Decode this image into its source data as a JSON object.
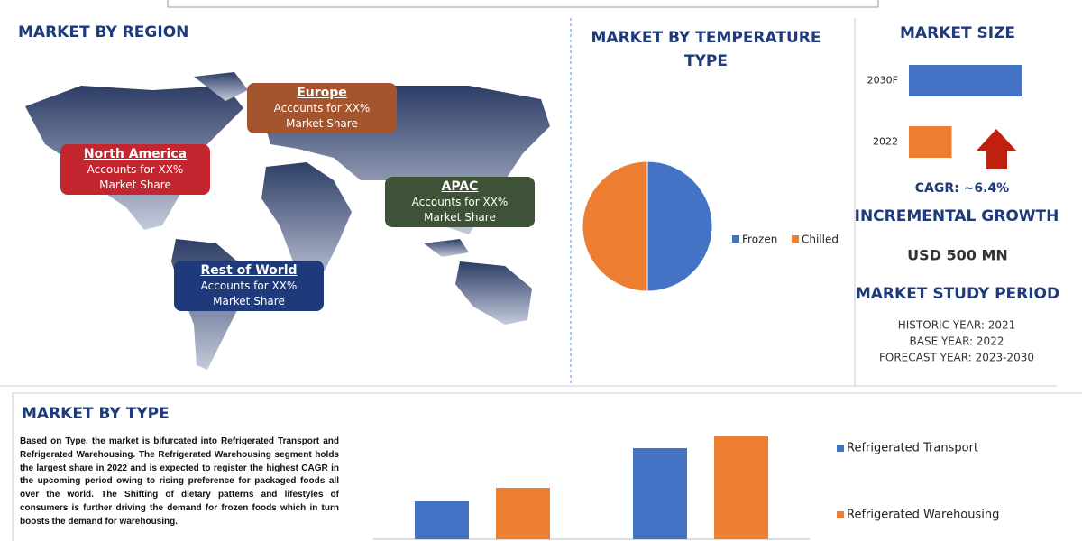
{
  "market_by_region": {
    "title": "MARKET BY REGION",
    "regions": [
      {
        "name": "North America",
        "text": "Accounts for XX% Market Share"
      },
      {
        "name": "Europe",
        "text": "Accounts for XX% Market Share"
      },
      {
        "name": "APAC",
        "text": "Accounts for XX% Market Share"
      },
      {
        "name": "Rest of World",
        "text": "Accounts for XX% Market Share"
      }
    ]
  },
  "market_size_panel": {
    "cagr": "CAGR:  ~6.4%",
    "incremental_growth_title": "INCREMENTAL GROWTH",
    "incremental_growth": "USD 500 MN",
    "study_period_title": "MARKET STUDY PERIOD",
    "study_period": [
      "HISTORIC YEAR: 2021",
      "BASE YEAR: 2022",
      "FORECAST YEAR: 2023-2030"
    ]
  },
  "market_by_type_text": "Based on Type, the market is bifurcated into Refrigerated Transport and Refrigerated Warehousing. The Refrigerated Warehousing segment holds the largest share in 2022 and is expected to register the highest CAGR in the upcoming period owing to rising preference for packaged foods all over the world. The Shifting of dietary patterns and lifestyles of consumers is further driving the demand for frozen foods which in turn boosts the demand for warehousing.",
  "chart_data": [
    {
      "type": "pie",
      "title": "MARKET BY TEMPERATURE TYPE",
      "categories": [
        "Frozen",
        "Chilled"
      ],
      "values": [
        50,
        50
      ],
      "colors": [
        "#4472c4",
        "#ed7d31"
      ]
    },
    {
      "type": "hbar",
      "title": "MARKET SIZE",
      "categories": [
        "2030F",
        "2022"
      ],
      "values": [
        100,
        38
      ],
      "colors": [
        "#4472c4",
        "#ed7d31"
      ],
      "xlim": [
        0,
        100
      ]
    },
    {
      "type": "bar",
      "title": "MARKET BY TYPE",
      "categories": [
        null,
        null
      ],
      "series": [
        {
          "name": "Refrigerated Transport",
          "color": "#4472c4",
          "values": [
            42,
            101
          ]
        },
        {
          "name": "Refrigerated Warehousing",
          "color": "#ed7d31",
          "values": [
            57,
            114
          ]
        }
      ],
      "ylim": [
        0,
        120
      ]
    }
  ]
}
